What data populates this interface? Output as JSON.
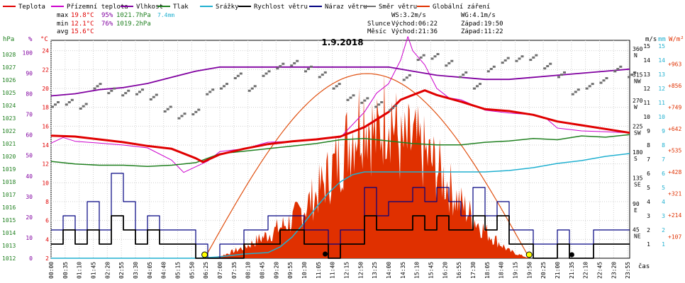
{
  "legend": [
    {
      "label": "Teplota",
      "color": "#e00000"
    },
    {
      "label": "Přízemní teplota",
      "color": "#cc00cc"
    },
    {
      "label": "Vlhkost",
      "color": "#8000a0"
    },
    {
      "label": "Tlak",
      "color": "#208020"
    },
    {
      "label": "Srážky",
      "color": "#20b0d0"
    },
    {
      "label": "Rychlost větru",
      "color": "#000000"
    },
    {
      "label": "Náraz větru",
      "color": "#000080"
    },
    {
      "label": "Směr větru",
      "color": "#707070"
    },
    {
      "label": "Globální záření",
      "color": "#e03000"
    }
  ],
  "stats": {
    "max": {
      "label": "max",
      "temp": "19.8°C",
      "hum": "95%",
      "press": "1021.7hPa",
      "rain": "7.4mm"
    },
    "min": {
      "label": "min",
      "temp": "12.1°C",
      "hum": "76%",
      "press": "1019.2hPa"
    },
    "avg": {
      "label": "avg",
      "temp": "15.6°C"
    }
  },
  "wind_info": {
    "ws": "WS:3.2m/s",
    "wg": "WG:4.1m/s",
    "sun_label": "Slunce",
    "sunrise": "Východ:06:22",
    "sunset": "Západ:19:50",
    "moon_label": "Měsíc",
    "moonrise": "Východ:21:36",
    "moonset": "Západ:11:22"
  },
  "date": "1.9.2018",
  "axis_units": {
    "hpa": "hPa",
    "pct": "%",
    "temp": "°C",
    "ms": "m/s",
    "mm": "mm",
    "wm2": "W/m²",
    "time": "čas"
  },
  "colors": {
    "temp": "#e00000",
    "ground": "#cc00cc",
    "hum": "#8000a0",
    "press": "#208020",
    "rain": "#20b0d0",
    "wind": "#000000",
    "gust": "#000080",
    "dir": "#707070",
    "rad": "#e03000"
  },
  "chart_data": {
    "type": "line",
    "title": "1.9.2018",
    "xlabel": "čas",
    "x_ticks": [
      "00:00",
      "00:35",
      "01:10",
      "01:45",
      "02:20",
      "02:55",
      "03:30",
      "04:05",
      "04:40",
      "05:15",
      "05:50",
      "06:25",
      "07:00",
      "07:35",
      "08:10",
      "08:45",
      "09:20",
      "09:55",
      "10:30",
      "11:05",
      "11:40",
      "12:15",
      "12:50",
      "13:25",
      "14:00",
      "14:35",
      "15:10",
      "15:45",
      "16:20",
      "16:55",
      "17:30",
      "18:05",
      "18:40",
      "19:15",
      "19:50",
      "20:25",
      "21:00",
      "21:35",
      "22:10",
      "22:45",
      "23:20",
      "23:55"
    ],
    "axes": {
      "pressure_hpa": {
        "ticks": [
          1012,
          1013,
          1014,
          1015,
          1016,
          1017,
          1018,
          1019,
          1020,
          1021,
          1022,
          1023,
          1024,
          1025,
          1026,
          1027,
          1028
        ]
      },
      "humidity_pct": {
        "ticks": [
          0,
          10,
          20,
          30,
          40,
          50,
          60,
          70,
          80,
          90,
          100
        ]
      },
      "temperature_c": {
        "ticks": [
          2,
          4,
          6,
          8,
          10,
          12,
          14,
          16,
          18,
          20,
          22,
          24
        ]
      },
      "wind_dir": {
        "ticks": [
          "45 NE",
          "90 E",
          "135 SE",
          "180 S",
          "225 SW",
          "270 W",
          "315 NW",
          "360 N"
        ]
      },
      "wind_ms": {
        "ticks": [
          0,
          1,
          2,
          3,
          4,
          5,
          6,
          7,
          8,
          9,
          10,
          11,
          12,
          13,
          14,
          15
        ]
      },
      "rain_mm": {
        "ticks": [
          0,
          1,
          2,
          3,
          4,
          5,
          6,
          7,
          8,
          9,
          10,
          11,
          12,
          13,
          14,
          15
        ]
      },
      "radiation_wm2": {
        "ticks": [
          107,
          214,
          321,
          428,
          535,
          642,
          749,
          856,
          963
        ]
      }
    },
    "series": [
      {
        "name": "Teplota",
        "unit": "°C",
        "x": [
          0,
          1,
          2,
          3,
          4,
          5,
          6,
          6.3,
          7,
          8,
          9,
          10,
          11,
          12,
          13,
          14,
          14.5,
          15,
          15.5,
          16,
          17,
          18,
          19,
          20,
          21,
          22,
          23,
          24
        ],
        "y": [
          15,
          14.9,
          14.6,
          14.3,
          13.9,
          13.6,
          12.6,
          12.2,
          13,
          13.6,
          14.1,
          14.4,
          14.6,
          14.9,
          15.9,
          17.5,
          18.8,
          19.3,
          19.8,
          19.3,
          18.6,
          17.8,
          17.6,
          17.2,
          16.5,
          16.1,
          15.7,
          15.3
        ]
      },
      {
        "name": "Přízemní teplota",
        "unit": "°C",
        "x": [
          0,
          0.5,
          1,
          2,
          3,
          4,
          5,
          5.5,
          6,
          6.5,
          7,
          8,
          9,
          10,
          11,
          12,
          13,
          13.5,
          14,
          14.5,
          14.8,
          15,
          15.5,
          16,
          16.5,
          17,
          18,
          19,
          20,
          20.5,
          21,
          22,
          23,
          24
        ],
        "y": [
          14.2,
          14.8,
          14.4,
          14.2,
          14,
          13.7,
          12.4,
          11.1,
          11.7,
          12.3,
          13.3,
          13.6,
          14.3,
          14.4,
          14.6,
          14.8,
          17.5,
          19.5,
          20.5,
          23,
          25.5,
          24,
          22.5,
          20,
          19,
          18.8,
          17.7,
          17.4,
          17.2,
          16.9,
          15.8,
          15.5,
          15.4,
          15.3
        ]
      },
      {
        "name": "Vlhkost",
        "unit": "%",
        "x": [
          0,
          1,
          2,
          3,
          4,
          5,
          6,
          7,
          8,
          9,
          10,
          11,
          12,
          13,
          14,
          15,
          16,
          17,
          18,
          19,
          20,
          21,
          22,
          23,
          24
        ],
        "y": [
          79,
          80,
          82,
          83,
          85,
          88,
          91,
          93,
          93,
          93,
          93,
          93,
          93,
          93,
          93,
          91,
          89,
          88,
          87,
          87,
          88,
          89,
          90,
          91,
          92
        ]
      },
      {
        "name": "Tlak",
        "unit": "hPa",
        "x": [
          0,
          1,
          2,
          3,
          4,
          5,
          6,
          7,
          8,
          9,
          10,
          11,
          12,
          13,
          14,
          15,
          16,
          17,
          18,
          19,
          20,
          21,
          22,
          23,
          24
        ],
        "y": [
          1019.6,
          1019.4,
          1019.3,
          1019.3,
          1019.2,
          1019.3,
          1019.5,
          1020.2,
          1020.4,
          1020.6,
          1020.8,
          1021,
          1021.3,
          1021.4,
          1021.2,
          1021,
          1020.9,
          1020.9,
          1021.1,
          1021.2,
          1021.4,
          1021.3,
          1021.6,
          1021.5,
          1021.7
        ]
      },
      {
        "name": "Srážky",
        "unit": "mm",
        "x": [
          0,
          6,
          7,
          8,
          9,
          9.5,
          10,
          10.5,
          11,
          11.5,
          12,
          12.5,
          13,
          13.5,
          14,
          16,
          18,
          19,
          20,
          21,
          22,
          23,
          24
        ],
        "y": [
          0,
          0,
          0.1,
          0.3,
          0.4,
          0.8,
          1.5,
          2.5,
          3.6,
          4.6,
          5.4,
          5.9,
          6.1,
          6.1,
          6.1,
          6.1,
          6.1,
          6.2,
          6.4,
          6.7,
          6.9,
          7.2,
          7.4
        ]
      },
      {
        "name": "Rychlost větru",
        "unit": "m/s",
        "x": [
          0,
          0.5,
          1,
          1.5,
          2,
          2.5,
          3,
          3.5,
          4,
          4.5,
          5,
          5.5,
          6,
          6.5,
          7,
          7.5,
          8,
          8.5,
          9,
          9.5,
          10,
          10.5,
          11,
          11.5,
          12,
          12.5,
          13,
          13.5,
          14,
          14.5,
          15,
          15.5,
          16,
          16.5,
          17,
          17.5,
          18,
          18.5,
          19,
          19.5,
          20,
          20.5,
          21,
          21.5,
          22,
          22.5,
          23,
          23.5,
          24
        ],
        "y": [
          1,
          2,
          1,
          2,
          1,
          3,
          2,
          1,
          2,
          1,
          1,
          1,
          0,
          0,
          0,
          0,
          1,
          1,
          1,
          2,
          2,
          1,
          1,
          0,
          1,
          1,
          3,
          2,
          2,
          2,
          3,
          2,
          3,
          2,
          2,
          3,
          2,
          3,
          1,
          1,
          0,
          0,
          1,
          0,
          0,
          1,
          1,
          1,
          1
        ]
      },
      {
        "name": "Náraz větru",
        "unit": "m/s",
        "x": [
          0,
          0.5,
          1,
          1.5,
          2,
          2.5,
          3,
          3.5,
          4,
          4.5,
          5,
          5.5,
          6,
          6.5,
          7,
          7.5,
          8,
          8.5,
          9,
          9.5,
          10,
          10.5,
          11,
          11.5,
          12,
          12.5,
          13,
          13.5,
          14,
          14.5,
          15,
          15.5,
          16,
          16.5,
          17,
          17.5,
          18,
          18.5,
          19,
          19.5,
          20,
          20.5,
          21,
          21.5,
          22,
          22.5,
          23,
          23.5,
          24
        ],
        "y": [
          2,
          3,
          2,
          4,
          2,
          6,
          4,
          2,
          3,
          2,
          2,
          2,
          1,
          0,
          1,
          1,
          2,
          2,
          3,
          3,
          3,
          2,
          2,
          1,
          2,
          2,
          5,
          3,
          4,
          4,
          5,
          4,
          5,
          4,
          3,
          5,
          3,
          4,
          2,
          2,
          1,
          1,
          2,
          1,
          1,
          2,
          2,
          2,
          2
        ]
      },
      {
        "name": "Globální záření",
        "unit": "W/m²",
        "x": [
          6.37,
          7,
          8,
          9,
          10,
          11,
          12,
          12.5,
          13,
          13.5,
          14,
          14.5,
          15,
          16,
          17,
          18,
          19,
          19.83
        ],
        "y": [
          0,
          10,
          60,
          130,
          210,
          350,
          560,
          700,
          820,
          650,
          860,
          600,
          640,
          500,
          300,
          150,
          40,
          0
        ]
      }
    ]
  }
}
